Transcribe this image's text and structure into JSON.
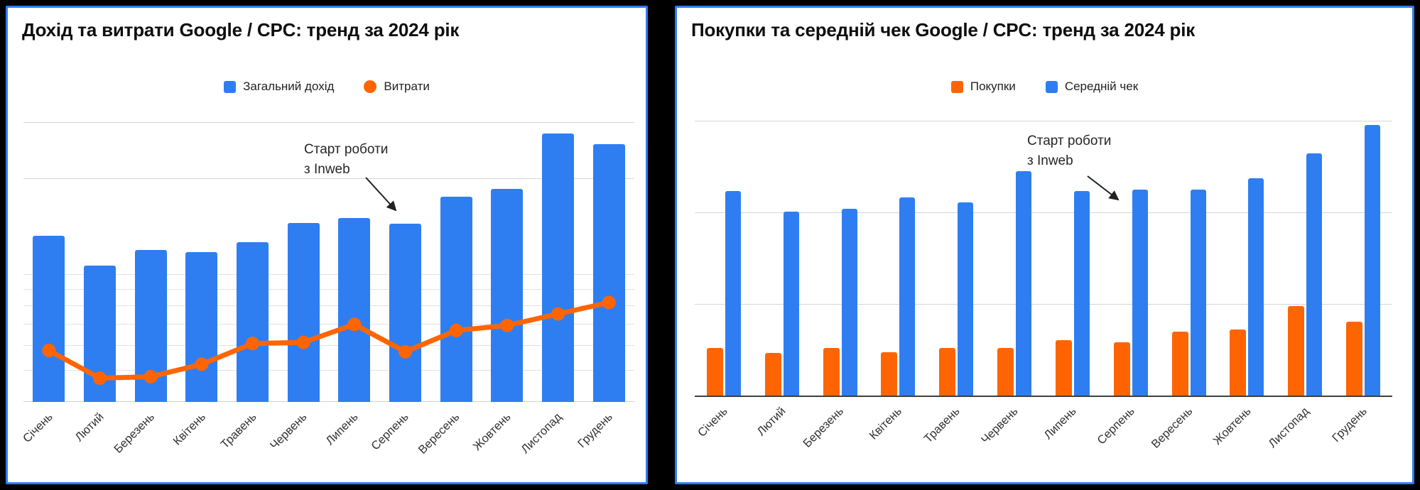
{
  "colors": {
    "background": "#000000",
    "panel_background": "#ffffff",
    "panel_border": "#2e7ef2",
    "bar_blue": "#2e7ef2",
    "bar_orange": "#fe6502",
    "gridline": "#d3d6d9",
    "axis_line": "#3f3f3f",
    "title_text": "#0e0e0e"
  },
  "chart_data": [
    {
      "type": "bar",
      "subtype": "bar + line combo, dual hidden axes",
      "title": "Дохід та витрати Google / CPC: тренд за 2024 рік",
      "categories": [
        "Січень",
        "Лютий",
        "Березень",
        "Квітень",
        "Травень",
        "Червень",
        "Липень",
        "Серпень",
        "Вересень",
        "Жовтень",
        "Листопад",
        "Грудень"
      ],
      "legend_position": "top",
      "grid_on": true,
      "annotation": {
        "lines": [
          "Старт роботи",
          "з Inweb"
        ],
        "target_category": "Серпень"
      },
      "y_axis": {
        "scale": "log",
        "tick_labels_visible": false,
        "units": "not shown (axis hidden), values estimated from gridlines",
        "baseline_value": 4,
        "plot_top_value": 35,
        "gridline_values": [
          30,
          20,
          10,
          9,
          8,
          7,
          6,
          5
        ]
      },
      "series": [
        {
          "name": "Загальний дохід",
          "type": "bar",
          "marker": "square",
          "color": "#2e7ef2",
          "values": [
            13.3,
            10.7,
            12.0,
            11.8,
            12.7,
            14.6,
            15.1,
            14.5,
            17.6,
            18.6,
            27.8,
            25.7
          ]
        },
        {
          "name": "Витрати",
          "type": "line",
          "marker": "circle",
          "color": "#fe6502",
          "values": [
            5.8,
            4.75,
            4.8,
            5.25,
            6.1,
            6.15,
            7.0,
            5.75,
            6.7,
            6.95,
            7.55,
            8.2
          ]
        }
      ]
    },
    {
      "type": "bar",
      "subtype": "grouped bars, dual hidden axes",
      "title": "Покупки та середній чек Google / CPC: тренд за 2024 рік",
      "categories": [
        "Січень",
        "Лютий",
        "Березень",
        "Квітень",
        "Травень",
        "Червень",
        "Липень",
        "Серпень",
        "Вересень",
        "Жовтень",
        "Листопад",
        "Грудень"
      ],
      "legend_position": "top",
      "grid_on": true,
      "annotation": {
        "lines": [
          "Старт роботи",
          "з Inweb"
        ],
        "target_category": "Серпень"
      },
      "y_axis": {
        "scale": "linear",
        "tick_labels_visible": false,
        "units": "not shown (axis hidden), values estimated from gridlines",
        "gridline_values": [
          500,
          1000,
          1500
        ],
        "gridline_axis": "Середній чек"
      },
      "series": [
        {
          "name": "Покупки",
          "type": "bar",
          "marker": "square",
          "color": "#fe6502",
          "axis_max": 483,
          "values": [
            79,
            71,
            79,
            72,
            79,
            79,
            92,
            88,
            106,
            109,
            148,
            122
          ]
        },
        {
          "name": "Середній чек",
          "type": "bar",
          "marker": "square",
          "color": "#2e7ef2",
          "axis_max": 1609,
          "values": [
            1120,
            1010,
            1025,
            1085,
            1060,
            1230,
            1120,
            1130,
            1130,
            1190,
            1325,
            1480
          ]
        }
      ]
    }
  ]
}
